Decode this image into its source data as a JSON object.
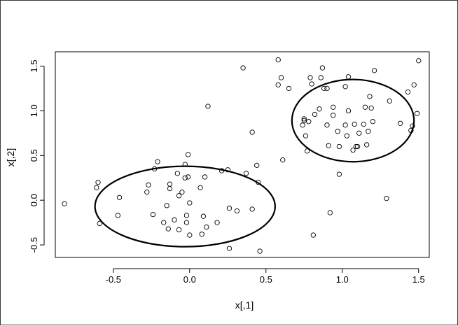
{
  "chart_data": {
    "type": "scatter",
    "title": "",
    "xlabel": "x[,1]",
    "ylabel": "x[,2]",
    "xlim": [
      -0.88,
      1.57
    ],
    "ylim": [
      -0.64,
      1.66
    ],
    "x_ticks": [
      -0.5,
      0.0,
      0.5,
      1.0,
      1.5
    ],
    "x_tick_labels": [
      "-0.5",
      "0.0",
      "0.5",
      "1.0",
      "1.5"
    ],
    "y_ticks": [
      -0.5,
      0.0,
      0.5,
      1.0,
      1.5
    ],
    "y_tick_labels": [
      "-0.5",
      "0.0",
      "0.5",
      "1.0",
      "1.5"
    ],
    "grid": false,
    "point_style": "open-circle",
    "points": [
      [
        -0.82,
        -0.04
      ],
      [
        -0.6,
        0.2
      ],
      [
        -0.61,
        0.14
      ],
      [
        -0.59,
        -0.26
      ],
      [
        -0.46,
        0.03
      ],
      [
        -0.47,
        -0.17
      ],
      [
        -0.27,
        0.17
      ],
      [
        -0.28,
        0.09
      ],
      [
        -0.23,
        0.35
      ],
      [
        -0.21,
        0.43
      ],
      [
        -0.24,
        -0.16
      ],
      [
        -0.17,
        -0.25
      ],
      [
        -0.15,
        -0.06
      ],
      [
        -0.14,
        -0.32
      ],
      [
        -0.13,
        0.18
      ],
      [
        -0.13,
        0.13
      ],
      [
        -0.1,
        -0.22
      ],
      [
        -0.08,
        0.3
      ],
      [
        -0.07,
        0.05
      ],
      [
        -0.07,
        -0.33
      ],
      [
        -0.05,
        0.09
      ],
      [
        -0.03,
        0.4
      ],
      [
        -0.02,
        -0.25
      ],
      [
        -0.02,
        -0.17
      ],
      [
        -0.03,
        0.25
      ],
      [
        -0.01,
        0.26
      ],
      [
        -0.01,
        0.51
      ],
      [
        0.0,
        -0.39
      ],
      [
        0.0,
        -0.03
      ],
      [
        0.07,
        0.14
      ],
      [
        0.08,
        -0.38
      ],
      [
        0.09,
        -0.18
      ],
      [
        0.1,
        0.26
      ],
      [
        0.11,
        -0.3
      ],
      [
        0.12,
        1.05
      ],
      [
        0.18,
        -0.25
      ],
      [
        0.21,
        0.33
      ],
      [
        0.25,
        0.34
      ],
      [
        0.26,
        -0.09
      ],
      [
        0.26,
        -0.54
      ],
      [
        0.31,
        -0.12
      ],
      [
        0.35,
        1.48
      ],
      [
        0.37,
        0.3
      ],
      [
        0.41,
        -0.1
      ],
      [
        0.41,
        0.76
      ],
      [
        0.44,
        0.39
      ],
      [
        0.45,
        0.2
      ],
      [
        0.46,
        -0.57
      ],
      [
        0.58,
        1.57
      ],
      [
        0.58,
        1.29
      ],
      [
        0.6,
        1.37
      ],
      [
        0.61,
        0.45
      ],
      [
        0.65,
        1.25
      ],
      [
        0.74,
        0.84
      ],
      [
        0.75,
        0.89
      ],
      [
        0.75,
        0.91
      ],
      [
        0.76,
        0.72
      ],
      [
        0.77,
        0.55
      ],
      [
        0.78,
        0.88
      ],
      [
        0.79,
        1.37
      ],
      [
        0.8,
        1.3
      ],
      [
        0.81,
        -0.39
      ],
      [
        0.82,
        0.96
      ],
      [
        0.85,
        1.02
      ],
      [
        0.86,
        1.37
      ],
      [
        0.87,
        1.48
      ],
      [
        0.88,
        1.25
      ],
      [
        0.9,
        1.25
      ],
      [
        0.9,
        0.84
      ],
      [
        0.91,
        0.61
      ],
      [
        0.92,
        -0.14
      ],
      [
        0.94,
        1.04
      ],
      [
        0.94,
        0.95
      ],
      [
        0.97,
        0.77
      ],
      [
        0.98,
        0.29
      ],
      [
        0.98,
        0.6
      ],
      [
        1.02,
        1.27
      ],
      [
        1.02,
        0.84
      ],
      [
        1.03,
        0.72
      ],
      [
        1.04,
        1.0
      ],
      [
        1.04,
        1.38
      ],
      [
        1.07,
        0.56
      ],
      [
        1.08,
        0.85
      ],
      [
        1.09,
        0.6
      ],
      [
        1.1,
        0.6
      ],
      [
        1.11,
        0.75
      ],
      [
        1.14,
        0.85
      ],
      [
        1.15,
        1.04
      ],
      [
        1.16,
        0.62
      ],
      [
        1.17,
        0.77
      ],
      [
        1.18,
        1.16
      ],
      [
        1.19,
        1.03
      ],
      [
        1.2,
        0.88
      ],
      [
        1.21,
        1.45
      ],
      [
        1.29,
        0.02
      ],
      [
        1.31,
        1.11
      ],
      [
        1.38,
        0.86
      ],
      [
        1.43,
        1.21
      ],
      [
        1.45,
        0.78
      ],
      [
        1.46,
        0.83
      ],
      [
        1.47,
        1.29
      ],
      [
        1.49,
        0.97
      ],
      [
        1.5,
        1.56
      ]
    ],
    "ellipses": [
      {
        "center": [
          -0.03,
          -0.07
        ],
        "radius_x": 0.59,
        "radius_y": 0.45
      },
      {
        "center": [
          1.07,
          0.89
        ],
        "radius_x": 0.4,
        "radius_y": 0.46
      }
    ]
  }
}
